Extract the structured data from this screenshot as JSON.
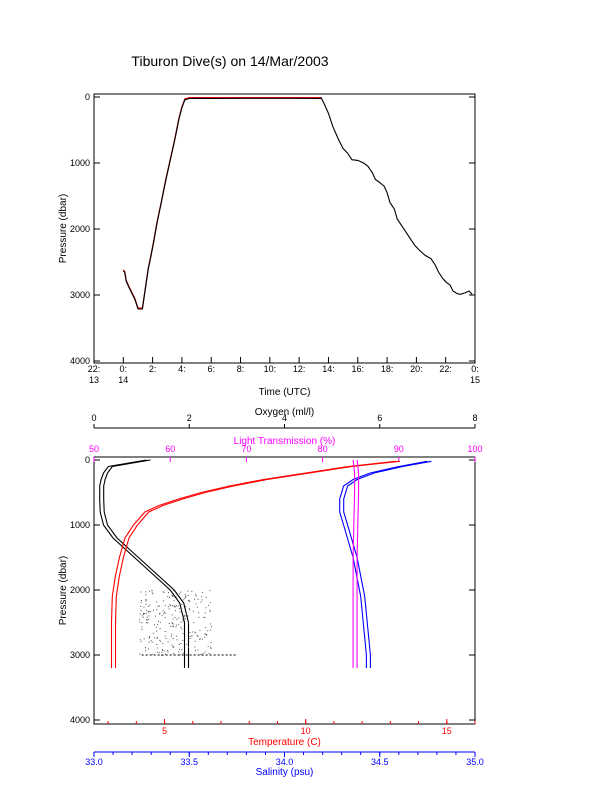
{
  "title": "Tiburon Dive(s) on 14/Mar/2003",
  "colors": {
    "axis": "#000000",
    "depth_line": "#000000",
    "depth_overlay": "#ff0000",
    "oxygen": "#000000",
    "temperature": "#ff0000",
    "salinity": "#0000ff",
    "transmission": "#ff00ff"
  },
  "chart_data": [
    {
      "type": "line",
      "title": "Tiburon Dive(s) on 14/Mar/2003",
      "xlabel": "Time (UTC)",
      "ylabel": "Pressure (dbar)",
      "xlim": [
        -2.0,
        24.0
      ],
      "ylim": [
        4000,
        0
      ],
      "xticks": [
        {
          "v": -2,
          "l1": "22:",
          "l2": "13"
        },
        {
          "v": 0,
          "l1": "0:",
          "l2": "14"
        },
        {
          "v": 2,
          "l1": "2:",
          "l2": ""
        },
        {
          "v": 4,
          "l1": "4:",
          "l2": ""
        },
        {
          "v": 6,
          "l1": "6:",
          "l2": ""
        },
        {
          "v": 8,
          "l1": "8:",
          "l2": ""
        },
        {
          "v": 10,
          "l1": "10:",
          "l2": ""
        },
        {
          "v": 12,
          "l1": "12:",
          "l2": ""
        },
        {
          "v": 14,
          "l1": "14:",
          "l2": ""
        },
        {
          "v": 16,
          "l1": "16:",
          "l2": ""
        },
        {
          "v": 18,
          "l1": "18:",
          "l2": ""
        },
        {
          "v": 20,
          "l1": "20:",
          "l2": ""
        },
        {
          "v": 22,
          "l1": "22:",
          "l2": ""
        },
        {
          "v": 24,
          "l1": "0:",
          "l2": "15"
        }
      ],
      "yticks": [
        0,
        1000,
        2000,
        3000,
        4000
      ],
      "series": [
        {
          "x": [
            0.0,
            0.1,
            0.2,
            0.4,
            0.6,
            0.8,
            1.0,
            1.3,
            1.5,
            1.7,
            1.9,
            2.1,
            2.3,
            2.6,
            2.9,
            3.2,
            3.5,
            3.8,
            4.0,
            4.2,
            4.5,
            5.0,
            6.0,
            8.0,
            10.0,
            12.0,
            13.5,
            13.7,
            14.0,
            14.3,
            14.7,
            15.0,
            15.3,
            15.6,
            16.0,
            16.4,
            16.7,
            17.0,
            17.2,
            17.4,
            17.8,
            18.0,
            18.2,
            18.5,
            18.7,
            19.0,
            19.3,
            19.6,
            19.9,
            20.2,
            20.6,
            21.0,
            21.3,
            21.5,
            21.8,
            22.0,
            22.3,
            22.5,
            22.8,
            23.0,
            23.3,
            23.6,
            23.8
          ],
          "y": [
            2620,
            2650,
            2780,
            2880,
            2970,
            3060,
            3200,
            3200,
            2900,
            2600,
            2380,
            2150,
            1900,
            1580,
            1250,
            950,
            650,
            320,
            150,
            30,
            10,
            8,
            10,
            8,
            8,
            8,
            10,
            100,
            250,
            450,
            650,
            780,
            850,
            950,
            960,
            1000,
            1050,
            1150,
            1250,
            1280,
            1350,
            1450,
            1600,
            1700,
            1850,
            1950,
            2050,
            2150,
            2250,
            2320,
            2400,
            2450,
            2550,
            2650,
            2750,
            2800,
            2850,
            2940,
            2980,
            2990,
            2970,
            2940,
            2990
          ]
        }
      ]
    },
    {
      "type": "line",
      "ylabel": "Pressure (dbar)",
      "ylim": [
        4000,
        0
      ],
      "yticks": [
        0,
        1000,
        2000,
        3000,
        4000
      ],
      "axes": {
        "oxygen": {
          "label": "Oxygen (ml/l)",
          "lim": [
            0,
            8
          ],
          "ticks": [
            0,
            2,
            4,
            6,
            8
          ]
        },
        "transmission": {
          "label": "Light Transmission (%)",
          "lim": [
            50,
            100
          ],
          "ticks": [
            50,
            60,
            70,
            80,
            90,
            100
          ]
        },
        "temperature": {
          "label": "Temperature (C)",
          "lim": [
            2.5,
            16.0
          ],
          "ticks": [
            5,
            10,
            15
          ]
        },
        "salinity": {
          "label": "Salinity (psu)",
          "lim": [
            33.0,
            35.0
          ],
          "ticks": [
            "33.0",
            "33.5",
            "34.0",
            "34.5",
            "35.0"
          ]
        }
      },
      "series": [
        {
          "name": "Oxygen",
          "axis": "oxygen",
          "x": [
            1.1,
            0.3,
            0.2,
            0.15,
            0.12,
            0.12,
            0.13,
            0.2,
            0.4,
            0.7,
            1.0,
            1.3,
            1.6,
            1.8,
            1.9,
            1.9,
            1.9
          ],
          "y": [
            0,
            100,
            200,
            300,
            400,
            600,
            800,
            1000,
            1200,
            1400,
            1600,
            1800,
            2000,
            2200,
            2500,
            2800,
            3200
          ]
        },
        {
          "name": "Temperature",
          "axis": "temperature",
          "x": [
            13.2,
            11.5,
            10.0,
            8.5,
            7.3,
            6.3,
            5.5,
            4.8,
            4.3,
            3.9,
            3.6,
            3.4,
            3.25,
            3.15,
            3.12,
            3.12,
            3.12
          ],
          "y": [
            20,
            100,
            200,
            300,
            400,
            500,
            600,
            700,
            800,
            1000,
            1200,
            1500,
            1800,
            2100,
            2500,
            2900,
            3200
          ]
        },
        {
          "name": "Salinity",
          "axis": "salinity",
          "x": [
            34.75,
            34.6,
            34.45,
            34.36,
            34.31,
            34.29,
            34.29,
            34.31,
            34.33,
            34.36,
            34.38,
            34.4,
            34.41,
            34.42,
            34.43,
            34.43
          ],
          "y": [
            20,
            100,
            200,
            300,
            400,
            600,
            800,
            1000,
            1200,
            1500,
            1800,
            2100,
            2400,
            2700,
            3000,
            3200
          ]
        },
        {
          "name": "Light Transmission",
          "axis": "transmission",
          "x": [
            84.0,
            84.2,
            84.2,
            84.1,
            84.0,
            84.0,
            84.0,
            84.0,
            84.0
          ],
          "y": [
            0,
            200,
            500,
            1000,
            1500,
            2000,
            2500,
            3000,
            3200
          ]
        }
      ]
    }
  ]
}
